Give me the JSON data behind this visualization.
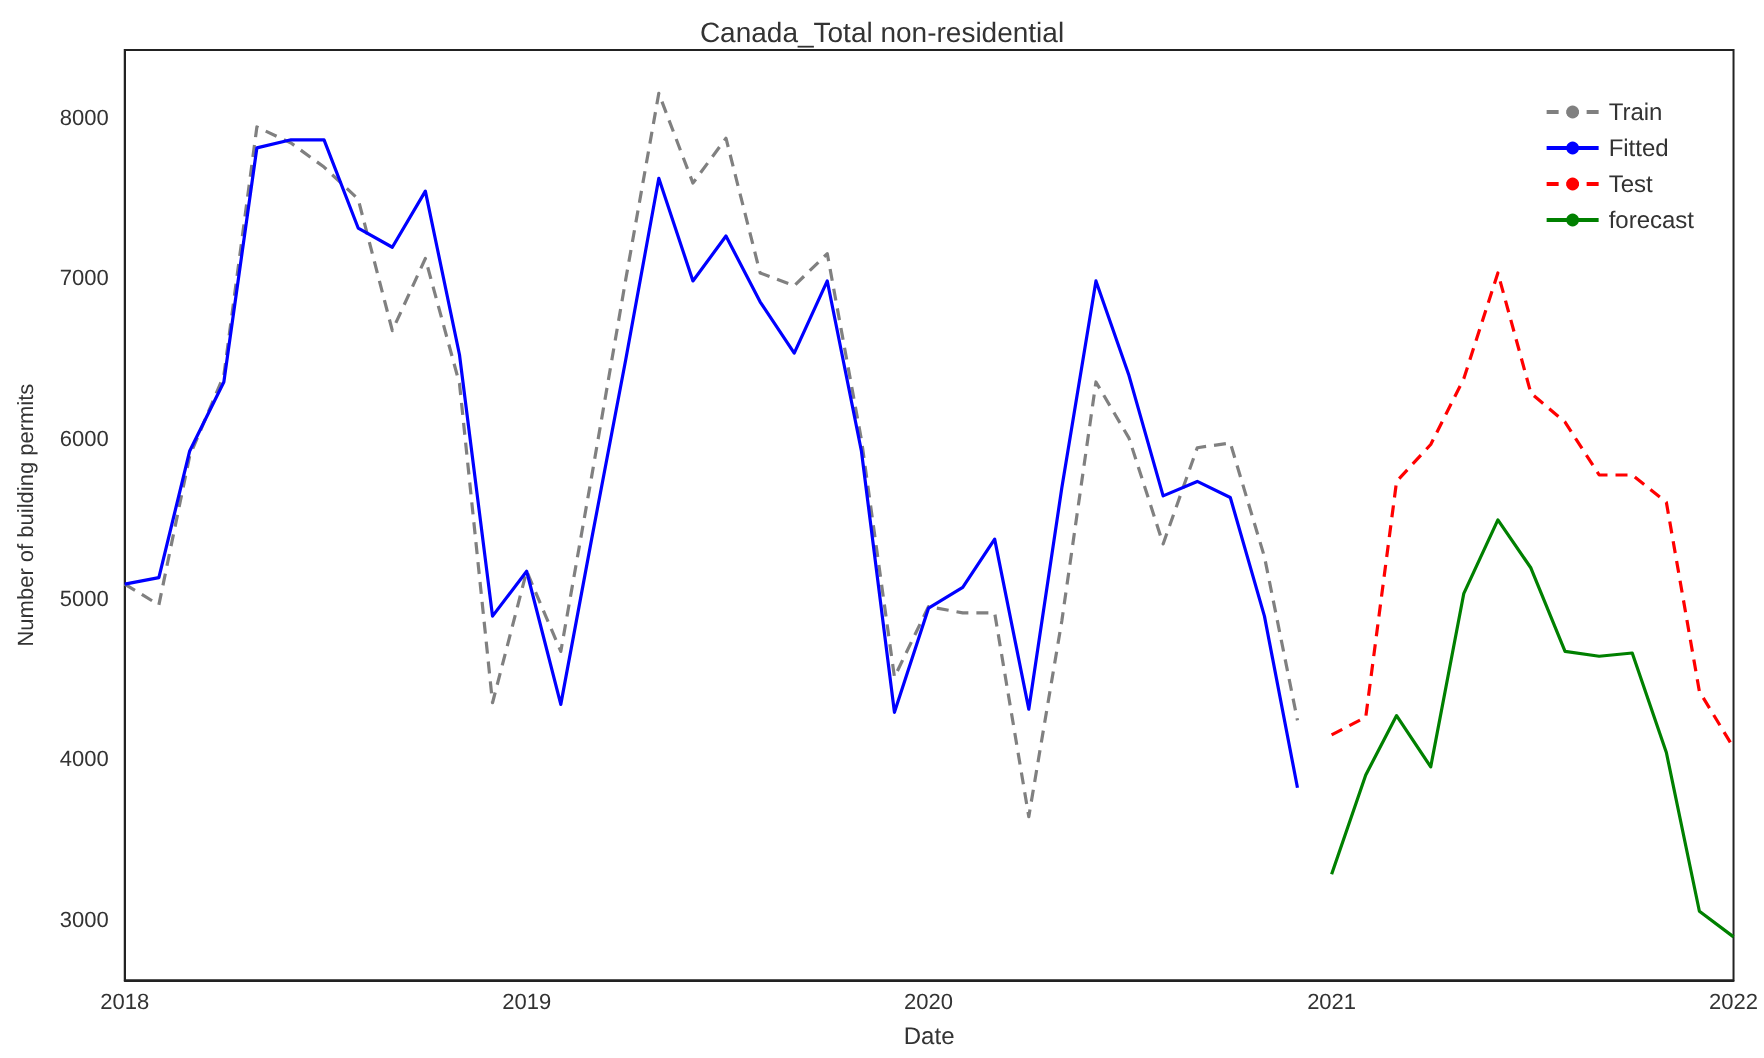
{
  "chart_data": {
    "type": "line",
    "title": "Canada_Total non-residential",
    "xlabel": "Date",
    "ylabel": "Number of building permits",
    "xlim": [
      "2018",
      "2022"
    ],
    "xticks": [
      "2018",
      "2019",
      "2020",
      "2021",
      "2022"
    ],
    "ylim": [
      2630,
      8430
    ],
    "yticks": [
      3000,
      4000,
      5000,
      6000,
      7000,
      8000
    ],
    "grid": false,
    "legend": "top right",
    "marker": "none",
    "series": [
      {
        "name": "Train",
        "color": "#808080",
        "line_style": "dashed",
        "x": [
          "2018-01",
          "2018-02",
          "2018-03",
          "2018-04",
          "2018-05",
          "2018-06",
          "2018-07",
          "2018-08",
          "2018-09",
          "2018-10",
          "2018-11",
          "2018-12",
          "2019-01",
          "2019-02",
          "2019-03",
          "2019-04",
          "2019-05",
          "2019-06",
          "2019-07",
          "2019-08",
          "2019-09",
          "2019-10",
          "2019-11",
          "2019-12",
          "2020-01",
          "2020-02",
          "2020-03",
          "2020-04",
          "2020-05",
          "2020-06",
          "2020-07",
          "2020-08",
          "2020-09",
          "2020-10",
          "2020-11",
          "2020-12"
        ],
        "values": [
          5100,
          4970,
          5900,
          6400,
          7950,
          7850,
          7700,
          7500,
          6680,
          7130,
          6350,
          4360,
          5180,
          4680,
          5770,
          7000,
          8160,
          7600,
          7880,
          7040,
          6960,
          7160,
          6000,
          4520,
          4960,
          4920,
          4920,
          3650,
          4870,
          6360,
          6010,
          5350,
          5950,
          5980,
          5270,
          4250
        ]
      },
      {
        "name": "Fitted",
        "color": "#0000ff",
        "line_style": "solid",
        "x": [
          "2018-01",
          "2018-02",
          "2018-03",
          "2018-04",
          "2018-05",
          "2018-06",
          "2018-07",
          "2018-08",
          "2018-09",
          "2018-10",
          "2018-11",
          "2018-12",
          "2019-01",
          "2019-02",
          "2019-03",
          "2019-04",
          "2019-05",
          "2019-06",
          "2019-07",
          "2019-08",
          "2019-09",
          "2019-10",
          "2019-11",
          "2019-12",
          "2020-01",
          "2020-02",
          "2020-03",
          "2020-04",
          "2020-05",
          "2020-06",
          "2020-07",
          "2020-08",
          "2020-09",
          "2020-10",
          "2020-11",
          "2020-12"
        ],
        "values": [
          5100,
          5140,
          5930,
          6360,
          7820,
          7870,
          7870,
          7320,
          7200,
          7550,
          6530,
          4900,
          5180,
          4350,
          5380,
          6500,
          7630,
          6990,
          7270,
          6860,
          6540,
          6990,
          5930,
          4300,
          4950,
          5080,
          5380,
          4320,
          5700,
          6990,
          6400,
          5650,
          5740,
          5640,
          4900,
          3830
        ]
      },
      {
        "name": "Test",
        "color": "#ff0000",
        "line_style": "dashed",
        "x": [
          "2021-01",
          "2021-02",
          "2021-03",
          "2021-04",
          "2021-05",
          "2021-06",
          "2021-07",
          "2021-08",
          "2021-09",
          "2021-10",
          "2021-11",
          "2021-12",
          "2022-01"
        ],
        "values": [
          4160,
          4270,
          5740,
          5970,
          6380,
          7040,
          6290,
          6110,
          5780,
          5780,
          5610,
          4430,
          4080
        ]
      },
      {
        "name": "forecast",
        "color": "#008000",
        "line_style": "solid",
        "x": [
          "2021-01",
          "2021-02",
          "2021-03",
          "2021-04",
          "2021-05",
          "2021-06",
          "2021-07",
          "2021-08",
          "2021-09",
          "2021-10",
          "2021-11",
          "2021-12",
          "2022-01"
        ],
        "values": [
          3290,
          3910,
          4280,
          3960,
          5040,
          5500,
          5200,
          4680,
          4650,
          4670,
          4050,
          3060,
          2900
        ]
      }
    ]
  }
}
